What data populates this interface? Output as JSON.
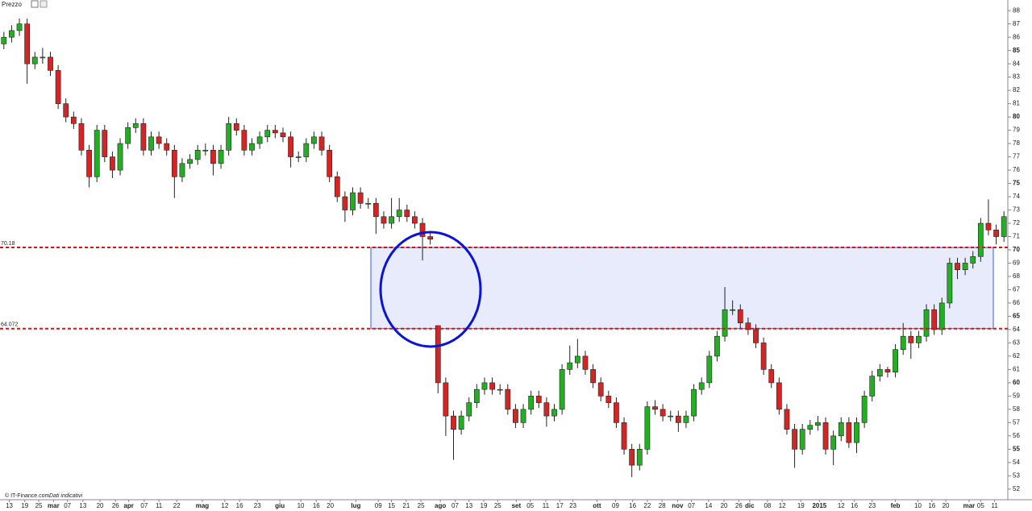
{
  "chart_data": {
    "type": "candlestick",
    "title": "Prezzo",
    "source": "© IT-Finance.com",
    "note": "Dati indicativi",
    "xlim": [
      -0.5,
      129.5
    ],
    "ylim": [
      51.2,
      88.8
    ],
    "yticks": [
      52,
      53,
      54,
      55,
      56,
      57,
      58,
      59,
      60,
      61,
      62,
      63,
      64,
      65,
      66,
      67,
      68,
      69,
      70,
      71,
      72,
      73,
      74,
      75,
      76,
      77,
      78,
      79,
      80,
      81,
      82,
      83,
      84,
      85,
      86,
      87,
      88
    ],
    "xticks": [
      {
        "value": 0.7,
        "label": "13"
      },
      {
        "value": 2.7,
        "label": "19"
      },
      {
        "value": 4.5,
        "label": "25"
      },
      {
        "value": 6.4,
        "label": "mar"
      },
      {
        "value": 8.2,
        "label": "07"
      },
      {
        "value": 10.2,
        "label": "13"
      },
      {
        "value": 12.4,
        "label": "20"
      },
      {
        "value": 14.4,
        "label": "26"
      },
      {
        "value": 16.1,
        "label": "apr"
      },
      {
        "value": 18.1,
        "label": "07"
      },
      {
        "value": 20.0,
        "label": "11"
      },
      {
        "value": 22.3,
        "label": "22"
      },
      {
        "value": 25.6,
        "label": "mag"
      },
      {
        "value": 28.5,
        "label": "12"
      },
      {
        "value": 30.4,
        "label": "16"
      },
      {
        "value": 32.7,
        "label": "23"
      },
      {
        "value": 35.6,
        "label": "giu"
      },
      {
        "value": 38.3,
        "label": "10"
      },
      {
        "value": 40.3,
        "label": "16"
      },
      {
        "value": 42.1,
        "label": "20"
      },
      {
        "value": 45.4,
        "label": "lug"
      },
      {
        "value": 48.3,
        "label": "09"
      },
      {
        "value": 50.0,
        "label": "15"
      },
      {
        "value": 51.9,
        "label": "21"
      },
      {
        "value": 53.8,
        "label": "25"
      },
      {
        "value": 56.3,
        "label": "ago"
      },
      {
        "value": 58.2,
        "label": "07"
      },
      {
        "value": 60.0,
        "label": "13"
      },
      {
        "value": 61.9,
        "label": "19"
      },
      {
        "value": 63.7,
        "label": "25"
      },
      {
        "value": 66.1,
        "label": "set"
      },
      {
        "value": 67.9,
        "label": "05"
      },
      {
        "value": 69.9,
        "label": "11"
      },
      {
        "value": 71.7,
        "label": "17"
      },
      {
        "value": 73.4,
        "label": "23"
      },
      {
        "value": 76.5,
        "label": "ott"
      },
      {
        "value": 78.9,
        "label": "09"
      },
      {
        "value": 81.1,
        "label": "16"
      },
      {
        "value": 83.0,
        "label": "22"
      },
      {
        "value": 84.9,
        "label": "28"
      },
      {
        "value": 86.9,
        "label": "nov"
      },
      {
        "value": 88.7,
        "label": "07"
      },
      {
        "value": 90.9,
        "label": "14"
      },
      {
        "value": 92.9,
        "label": "20"
      },
      {
        "value": 94.8,
        "label": "26"
      },
      {
        "value": 96.2,
        "label": "dic"
      },
      {
        "value": 98.5,
        "label": "08"
      },
      {
        "value": 100.4,
        "label": "12"
      },
      {
        "value": 102.8,
        "label": "19"
      },
      {
        "value": 105.2,
        "label": "2015"
      },
      {
        "value": 108.0,
        "label": "12"
      },
      {
        "value": 109.7,
        "label": "16"
      },
      {
        "value": 112.0,
        "label": "23"
      },
      {
        "value": 115.0,
        "label": "feb"
      },
      {
        "value": 117.9,
        "label": "10"
      },
      {
        "value": 119.7,
        "label": "16"
      },
      {
        "value": 121.5,
        "label": "20"
      },
      {
        "value": 124.5,
        "label": "mar"
      },
      {
        "value": 126.0,
        "label": "05"
      },
      {
        "value": 127.8,
        "label": "11"
      }
    ],
    "open": [
      85.5,
      86,
      86.5,
      87,
      84,
      84.5,
      84.5,
      83.5,
      81,
      80,
      79.5,
      77.5,
      75.5,
      79,
      77,
      76,
      78,
      79.2,
      79.5,
      77.5,
      78.5,
      78,
      77.5,
      75.5,
      76.5,
      76.8,
      77.5,
      77.5,
      76.5,
      77.5,
      79.5,
      79,
      77.5,
      78,
      78.5,
      79,
      78.8,
      78.5,
      77,
      77,
      78,
      78.5,
      77.5,
      75.5,
      74,
      73,
      74.3,
      73.5,
      73.5,
      72.5,
      72,
      72.5,
      73,
      72.5,
      72,
      71,
      64.3,
      60,
      57.5,
      56.5,
      57.5,
      58.5,
      59.5,
      60,
      59.5,
      59.5,
      58,
      57,
      58,
      59,
      58.5,
      57.5,
      58,
      61,
      61.5,
      62,
      61,
      60,
      59,
      58.5,
      57,
      55,
      53.8,
      55,
      58.2,
      58,
      57.5,
      57.5,
      57,
      57.5,
      59.5,
      60,
      62,
      63.5,
      65.5,
      65.5,
      64.5,
      64,
      63,
      61,
      60,
      58,
      56.5,
      55,
      56.5,
      56.8,
      57,
      55,
      56,
      57,
      55.5,
      57,
      59,
      60.5,
      61,
      60.8,
      62.5,
      63.5,
      63,
      63.5,
      65.5,
      64,
      66,
      69,
      68.5,
      69,
      69.5,
      72,
      71.5,
      71
    ],
    "high": [
      86.4,
      86.9,
      87.4,
      87.4,
      84.9,
      85.2,
      84.9,
      83.9,
      81.4,
      80.4,
      79.9,
      77.9,
      79.4,
      79.4,
      77.4,
      78.4,
      79.6,
      79.9,
      79.9,
      78.9,
      78.9,
      78.4,
      77.9,
      76.9,
      77.2,
      77.9,
      78,
      77.9,
      77.9,
      80,
      79.9,
      79.4,
      78.4,
      78.9,
      79.4,
      79.4,
      79.2,
      78.9,
      77.4,
      78.4,
      78.9,
      78.9,
      77.9,
      75.9,
      74.4,
      74.7,
      74.7,
      73.9,
      73.9,
      72.9,
      73.9,
      73.9,
      73.4,
      72.9,
      72.4,
      71.4,
      64.3,
      60.4,
      57.9,
      57.9,
      58.9,
      59.9,
      60.4,
      60.4,
      59.9,
      59.9,
      58.4,
      58.4,
      59.4,
      59.4,
      58.9,
      58.4,
      61.4,
      62.8,
      63.3,
      62.4,
      61.4,
      60.4,
      59.4,
      58.9,
      57.4,
      55.4,
      55.4,
      58.6,
      58.7,
      58.4,
      57.9,
      57.9,
      57.9,
      59.9,
      60.4,
      62.4,
      63.9,
      67.2,
      66.2,
      65.9,
      64.9,
      64.4,
      63.4,
      61.4,
      60.4,
      58.4,
      56.9,
      56.9,
      57.2,
      57.5,
      57.4,
      56.4,
      57.4,
      57.4,
      57.4,
      59.4,
      60.9,
      61.4,
      61.2,
      62.9,
      64.5,
      63.9,
      63.9,
      65.9,
      65.9,
      66.4,
      69.4,
      69.4,
      69.4,
      69.9,
      72.4,
      73.8,
      71.9,
      72.9
    ],
    "low": [
      85.1,
      85.6,
      86.1,
      82.5,
      83.6,
      84.0,
      83.1,
      80.6,
      79.6,
      79.1,
      77.1,
      74.7,
      75.1,
      76.6,
      75.4,
      75.6,
      77.6,
      78.8,
      77.1,
      77.1,
      77.6,
      77.1,
      73.9,
      75.1,
      76.1,
      76.4,
      77.1,
      75.6,
      76.1,
      77.1,
      78.6,
      77.1,
      77.1,
      77.6,
      78.1,
      78.4,
      78.1,
      76.2,
      76.6,
      76.6,
      77.6,
      77.1,
      75.1,
      73.6,
      72.1,
      72.6,
      73.1,
      73.1,
      71.2,
      71.6,
      71.6,
      72.1,
      72.1,
      71.6,
      69.2,
      70.4,
      59.2,
      56.0,
      54.2,
      56.1,
      57.1,
      58.1,
      59.1,
      59.1,
      59.1,
      57.6,
      56.6,
      56.6,
      57.6,
      58.1,
      56.7,
      57.1,
      57.6,
      60.6,
      61.1,
      60.6,
      59.6,
      58.6,
      58.1,
      56.6,
      54.6,
      52.9,
      53.4,
      54.6,
      57.6,
      57.1,
      57.1,
      56.3,
      56.6,
      57.1,
      59.1,
      59.6,
      61.6,
      63.1,
      65.1,
      64.1,
      63.6,
      62.6,
      60.6,
      59.6,
      57.6,
      56.1,
      53.6,
      54.6,
      56.1,
      56.4,
      54.6,
      53.8,
      55.6,
      55.1,
      54.7,
      56.6,
      58.6,
      60.1,
      60.4,
      60.4,
      62.1,
      61.8,
      62.6,
      63.1,
      63.6,
      63.6,
      65.6,
      67.8,
      68.1,
      68.6,
      69.1,
      71.1,
      70.4,
      70.6
    ],
    "close": [
      86,
      86.5,
      87,
      84,
      84.5,
      84.5,
      83.5,
      81,
      80,
      79.5,
      77.5,
      75.5,
      79,
      77,
      76,
      78,
      79.2,
      79.5,
      77.5,
      78.5,
      78,
      77.5,
      75.5,
      76.5,
      76.8,
      77.5,
      77.5,
      76.5,
      77.5,
      79.5,
      79,
      77.5,
      78,
      78.5,
      79,
      78.8,
      78.5,
      77,
      77,
      78,
      78.5,
      77.5,
      75.5,
      74,
      73,
      74.3,
      73.5,
      73.5,
      72.5,
      72,
      72.5,
      73,
      72.5,
      72,
      71,
      70.8,
      60,
      57.5,
      56.5,
      57.5,
      58.5,
      59.5,
      60,
      59.5,
      59.5,
      58,
      57,
      58,
      59,
      58.5,
      57.5,
      58,
      61,
      61.5,
      62,
      61,
      60,
      59,
      58.5,
      57,
      55,
      53.8,
      55,
      58.2,
      58,
      57.5,
      57.5,
      57,
      57.5,
      59.5,
      60,
      62,
      63.5,
      65.5,
      65.5,
      64.5,
      64,
      63,
      61,
      60,
      58,
      56.5,
      55,
      56.5,
      56.8,
      57,
      55,
      56,
      57,
      55.5,
      57,
      59,
      60.5,
      61,
      60.8,
      62.5,
      63.5,
      63,
      63.5,
      65.5,
      64,
      66,
      69,
      68.5,
      69,
      69.5,
      72,
      71.5,
      71,
      72.5
    ],
    "up_color": "#22b022",
    "down_color": "#d42424",
    "levels": [
      70.18,
      64.072
    ],
    "level_color": "#e01010",
    "zone_color": "#3b5bdb"
  }
}
